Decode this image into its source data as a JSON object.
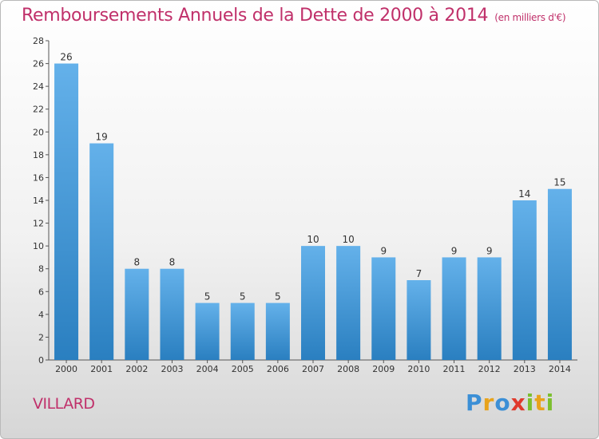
{
  "title": "Remboursements Annuels de la Dette de 2000 à 2014",
  "subtitle": "(en milliers d'€)",
  "place": "VILLARD",
  "logo": {
    "p": "P",
    "r": "r",
    "o": "o",
    "x": "x",
    "i1": "i",
    "t": "t",
    "i2": "i"
  },
  "colors": {
    "accent": "#c0306a",
    "bar_top": "#64b1ea",
    "bar_bottom": "#2a7fc0"
  },
  "chart_data": {
    "type": "bar",
    "title": "Remboursements Annuels de la Dette de 2000 à 2014",
    "subtitle": "(en milliers d'€)",
    "categories": [
      "2000",
      "2001",
      "2002",
      "2003",
      "2004",
      "2005",
      "2006",
      "2007",
      "2008",
      "2009",
      "2010",
      "2011",
      "2012",
      "2013",
      "2014"
    ],
    "values": [
      26,
      19,
      8,
      8,
      5,
      5,
      5,
      10,
      10,
      9,
      7,
      9,
      9,
      14,
      15
    ],
    "ylim": [
      0,
      28
    ],
    "yticks": [
      0,
      2,
      4,
      6,
      8,
      10,
      12,
      14,
      16,
      18,
      20,
      22,
      24,
      26,
      28
    ],
    "grid": false,
    "legend": "none"
  }
}
